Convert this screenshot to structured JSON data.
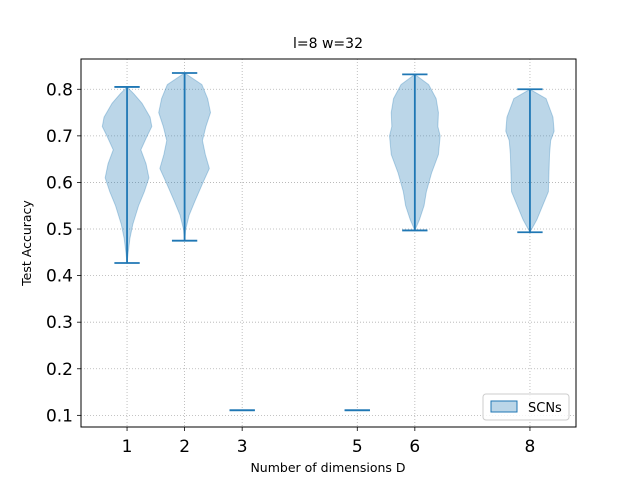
{
  "chart_data": {
    "type": "violin",
    "title": "l=8 w=32",
    "xlabel": "Number of dimensions D",
    "ylabel": "Test Accuracy",
    "xlim": [
      0.2,
      8.8
    ],
    "ylim": [
      0.075,
      0.865
    ],
    "x_ticks": [
      1,
      2,
      3,
      5,
      6,
      8
    ],
    "y_ticks": [
      0.1,
      0.2,
      0.3,
      0.4,
      0.5,
      0.6,
      0.7,
      0.8
    ],
    "grid": true,
    "legend_position": "lower right",
    "colors": {
      "body": "#1f77b4",
      "line": "#1f77b4",
      "grid": "#b0b0b0"
    },
    "series": [
      {
        "name": "SCNs",
        "violins": [
          {
            "x": 1,
            "min": 0.427,
            "max": 0.805,
            "profile": [
              [
                0.427,
                0.0
              ],
              [
                0.45,
                0.02
              ],
              [
                0.48,
                0.05
              ],
              [
                0.51,
                0.1
              ],
              [
                0.55,
                0.2
              ],
              [
                0.58,
                0.3
              ],
              [
                0.61,
                0.38
              ],
              [
                0.64,
                0.33
              ],
              [
                0.67,
                0.24
              ],
              [
                0.7,
                0.35
              ],
              [
                0.72,
                0.43
              ],
              [
                0.74,
                0.4
              ],
              [
                0.77,
                0.26
              ],
              [
                0.79,
                0.12
              ],
              [
                0.805,
                0.0
              ]
            ]
          },
          {
            "x": 2,
            "min": 0.475,
            "max": 0.835,
            "profile": [
              [
                0.475,
                0.0
              ],
              [
                0.5,
                0.02
              ],
              [
                0.53,
                0.08
              ],
              [
                0.56,
                0.18
              ],
              [
                0.6,
                0.32
              ],
              [
                0.63,
                0.43
              ],
              [
                0.66,
                0.36
              ],
              [
                0.69,
                0.31
              ],
              [
                0.72,
                0.37
              ],
              [
                0.75,
                0.45
              ],
              [
                0.78,
                0.4
              ],
              [
                0.81,
                0.3
              ],
              [
                0.835,
                0.0
              ]
            ]
          },
          {
            "x": 3,
            "min": 0.111,
            "max": 0.111,
            "profile": []
          },
          {
            "x": 5,
            "min": 0.111,
            "max": 0.111,
            "profile": []
          },
          {
            "x": 6,
            "min": 0.497,
            "max": 0.832,
            "profile": [
              [
                0.497,
                0.0
              ],
              [
                0.52,
                0.08
              ],
              [
                0.55,
                0.16
              ],
              [
                0.58,
                0.2
              ],
              [
                0.62,
                0.29
              ],
              [
                0.66,
                0.41
              ],
              [
                0.7,
                0.44
              ],
              [
                0.72,
                0.4
              ],
              [
                0.75,
                0.41
              ],
              [
                0.78,
                0.37
              ],
              [
                0.81,
                0.24
              ],
              [
                0.832,
                0.0
              ]
            ]
          },
          {
            "x": 8,
            "min": 0.493,
            "max": 0.8,
            "profile": [
              [
                0.493,
                0.0
              ],
              [
                0.52,
                0.12
              ],
              [
                0.55,
                0.22
              ],
              [
                0.58,
                0.32
              ],
              [
                0.62,
                0.33
              ],
              [
                0.66,
                0.34
              ],
              [
                0.69,
                0.36
              ],
              [
                0.71,
                0.42
              ],
              [
                0.74,
                0.4
              ],
              [
                0.76,
                0.34
              ],
              [
                0.78,
                0.28
              ],
              [
                0.8,
                0.0
              ]
            ]
          }
        ]
      }
    ]
  }
}
